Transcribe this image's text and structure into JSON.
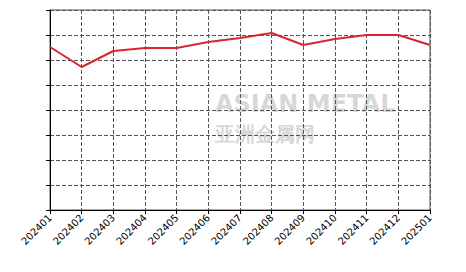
{
  "chart_data": {
    "type": "line",
    "categories": [
      "202401",
      "202402",
      "202403",
      "202404",
      "202405",
      "202406",
      "202407",
      "202408",
      "202409",
      "202410",
      "202411",
      "202412",
      "202501"
    ],
    "values": [
      6.52,
      5.72,
      6.36,
      6.48,
      6.48,
      6.72,
      6.88,
      7.08,
      6.6,
      6.84,
      7.0,
      7.0,
      6.6
    ],
    "color": "#d9252b",
    "ylim": [
      0,
      8
    ],
    "yticks": [
      0,
      1,
      2,
      3,
      4,
      5,
      6,
      7,
      8
    ],
    "grid": true,
    "tick_labels": "x",
    "annotations": [
      "ASIAN METAL",
      "亚洲金属网"
    ]
  }
}
